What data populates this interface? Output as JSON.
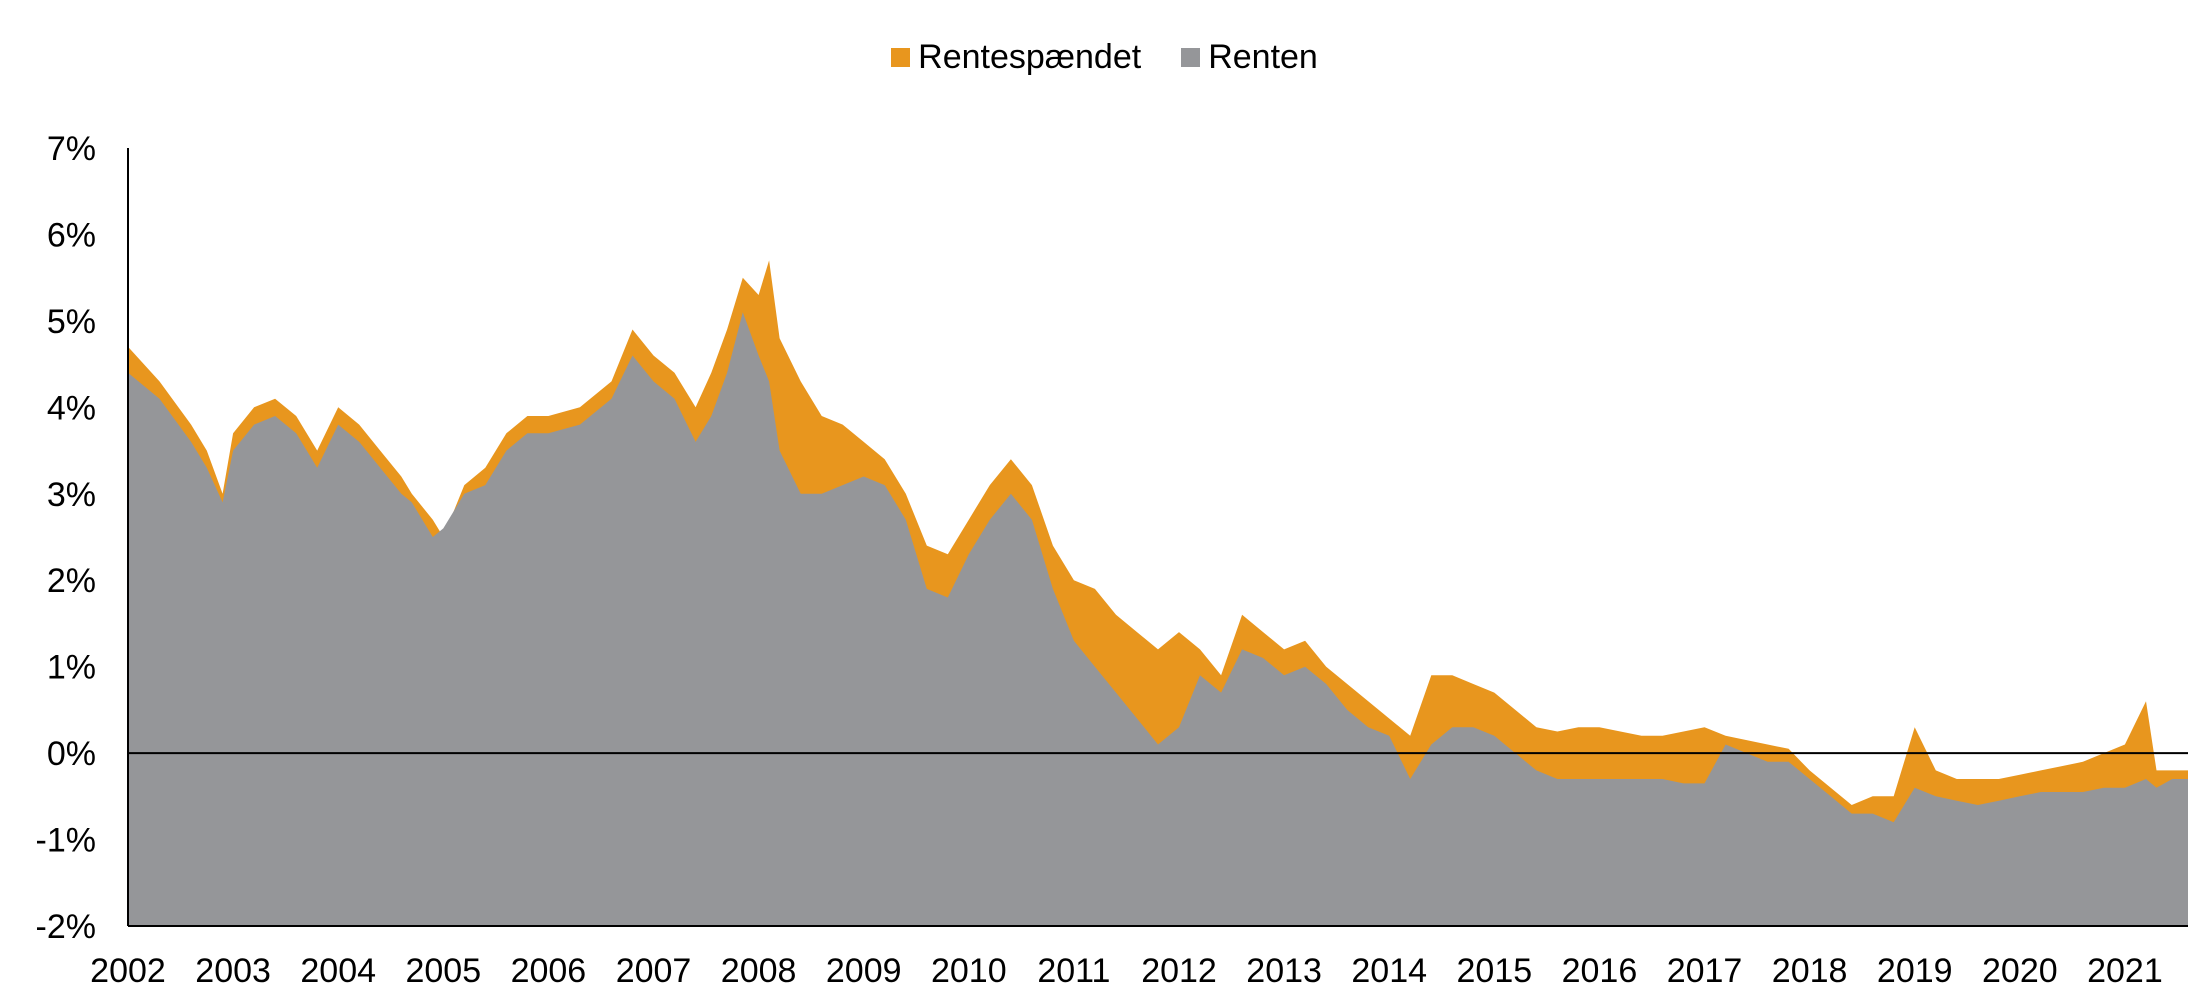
{
  "chart_data": {
    "type": "area",
    "title": "",
    "xlabel": "",
    "ylabel": "",
    "ylim": [
      -2,
      7
    ],
    "xlim": [
      2002.0,
      2021.6
    ],
    "y_ticks": [
      "7%",
      "6%",
      "5%",
      "4%",
      "3%",
      "2%",
      "1%",
      "0%",
      "-1%",
      "-2%"
    ],
    "x_ticks": [
      "2002",
      "2003",
      "2004",
      "2005",
      "2006",
      "2007",
      "2008",
      "2009",
      "2010",
      "2011",
      "2012",
      "2013",
      "2014",
      "2015",
      "2016",
      "2017",
      "2018",
      "2019",
      "2020",
      "2021"
    ],
    "legend_position": "top-center",
    "grid": false,
    "zero_line": true,
    "series": [
      {
        "name": "Rentespændet",
        "color": "#E8961E",
        "x": [
          2002.0,
          2002.3,
          2002.6,
          2002.75,
          2002.9,
          2003.0,
          2003.2,
          2003.4,
          2003.6,
          2003.8,
          2004.0,
          2004.2,
          2004.4,
          2004.6,
          2004.7,
          2004.9,
          2005.0,
          2005.2,
          2005.4,
          2005.6,
          2005.8,
          2006.0,
          2006.3,
          2006.6,
          2006.8,
          2007.0,
          2007.2,
          2007.4,
          2007.55,
          2007.7,
          2007.85,
          2008.0,
          2008.1,
          2008.2,
          2008.4,
          2008.6,
          2008.8,
          2009.0,
          2009.2,
          2009.4,
          2009.6,
          2009.8,
          2010.0,
          2010.2,
          2010.4,
          2010.6,
          2010.8,
          2011.0,
          2011.2,
          2011.4,
          2011.6,
          2011.8,
          2012.0,
          2012.2,
          2012.4,
          2012.6,
          2012.8,
          2013.0,
          2013.2,
          2013.4,
          2013.6,
          2013.8,
          2014.0,
          2014.2,
          2014.4,
          2014.6,
          2014.8,
          2015.0,
          2015.2,
          2015.4,
          2015.6,
          2015.8,
          2016.0,
          2016.2,
          2016.4,
          2016.6,
          2016.8,
          2017.0,
          2017.2,
          2017.4,
          2017.6,
          2017.8,
          2018.0,
          2018.2,
          2018.4,
          2018.6,
          2018.8,
          2019.0,
          2019.2,
          2019.4,
          2019.6,
          2019.8,
          2020.0,
          2020.2,
          2020.4,
          2020.6,
          2020.8,
          2021.0,
          2021.2,
          2021.3,
          2021.45,
          2021.55,
          2021.6
        ],
        "values": [
          4.7,
          4.3,
          3.8,
          3.5,
          3.0,
          3.7,
          4.0,
          4.1,
          3.9,
          3.5,
          4.0,
          3.8,
          3.5,
          3.2,
          3.0,
          2.7,
          2.5,
          3.1,
          3.3,
          3.7,
          3.9,
          3.9,
          4.0,
          4.3,
          4.9,
          4.6,
          4.4,
          4.0,
          4.4,
          4.9,
          5.5,
          5.3,
          5.7,
          4.8,
          4.3,
          3.9,
          3.8,
          3.6,
          3.4,
          3.0,
          2.4,
          2.3,
          2.7,
          3.1,
          3.4,
          3.1,
          2.4,
          2.0,
          1.9,
          1.6,
          1.4,
          1.2,
          1.4,
          1.2,
          0.9,
          1.6,
          1.4,
          1.2,
          1.3,
          1.0,
          0.8,
          0.6,
          0.4,
          0.2,
          0.9,
          0.9,
          0.8,
          0.7,
          0.5,
          0.3,
          0.25,
          0.3,
          0.3,
          0.25,
          0.2,
          0.2,
          0.25,
          0.3,
          0.2,
          0.15,
          0.1,
          0.05,
          -0.2,
          -0.4,
          -0.6,
          -0.5,
          -0.5,
          0.3,
          -0.2,
          -0.3,
          -0.3,
          -0.3,
          -0.25,
          -0.2,
          -0.15,
          -0.1,
          0.0,
          0.1,
          0.6,
          -0.2,
          -0.2,
          -0.2,
          -0.2
        ]
      },
      {
        "name": "Renten",
        "color": "#959699",
        "x": [
          2002.0,
          2002.3,
          2002.6,
          2002.75,
          2002.9,
          2003.0,
          2003.2,
          2003.4,
          2003.6,
          2003.8,
          2004.0,
          2004.2,
          2004.4,
          2004.6,
          2004.7,
          2004.9,
          2005.0,
          2005.2,
          2005.4,
          2005.6,
          2005.8,
          2006.0,
          2006.3,
          2006.6,
          2006.8,
          2007.0,
          2007.2,
          2007.4,
          2007.55,
          2007.7,
          2007.85,
          2008.0,
          2008.1,
          2008.2,
          2008.4,
          2008.6,
          2008.8,
          2009.0,
          2009.2,
          2009.4,
          2009.6,
          2009.8,
          2010.0,
          2010.2,
          2010.4,
          2010.6,
          2010.8,
          2011.0,
          2011.2,
          2011.4,
          2011.6,
          2011.8,
          2012.0,
          2012.2,
          2012.4,
          2012.6,
          2012.8,
          2013.0,
          2013.2,
          2013.4,
          2013.6,
          2013.8,
          2014.0,
          2014.2,
          2014.4,
          2014.6,
          2014.8,
          2015.0,
          2015.2,
          2015.4,
          2015.6,
          2015.8,
          2016.0,
          2016.2,
          2016.4,
          2016.6,
          2016.8,
          2017.0,
          2017.2,
          2017.4,
          2017.6,
          2017.8,
          2018.0,
          2018.2,
          2018.4,
          2018.6,
          2018.8,
          2019.0,
          2019.2,
          2019.4,
          2019.6,
          2019.8,
          2020.0,
          2020.2,
          2020.4,
          2020.6,
          2020.8,
          2021.0,
          2021.2,
          2021.3,
          2021.45,
          2021.55,
          2021.6
        ],
        "values": [
          4.4,
          4.1,
          3.6,
          3.3,
          2.9,
          3.5,
          3.8,
          3.9,
          3.7,
          3.3,
          3.8,
          3.6,
          3.3,
          3.0,
          2.9,
          2.5,
          2.6,
          3.0,
          3.1,
          3.5,
          3.7,
          3.7,
          3.8,
          4.1,
          4.6,
          4.3,
          4.1,
          3.6,
          3.9,
          4.4,
          5.1,
          4.6,
          4.3,
          3.5,
          3.0,
          3.0,
          3.1,
          3.2,
          3.1,
          2.7,
          1.9,
          1.8,
          2.3,
          2.7,
          3.0,
          2.7,
          1.9,
          1.3,
          1.0,
          0.7,
          0.4,
          0.1,
          0.3,
          0.9,
          0.7,
          1.2,
          1.1,
          0.9,
          1.0,
          0.8,
          0.5,
          0.3,
          0.2,
          -0.3,
          0.1,
          0.3,
          0.3,
          0.2,
          0.0,
          -0.2,
          -0.3,
          -0.3,
          -0.3,
          -0.3,
          -0.3,
          -0.3,
          -0.35,
          -0.35,
          0.1,
          0.0,
          -0.1,
          -0.1,
          -0.3,
          -0.5,
          -0.7,
          -0.7,
          -0.8,
          -0.4,
          -0.5,
          -0.55,
          -0.6,
          -0.55,
          -0.5,
          -0.45,
          -0.45,
          -0.45,
          -0.4,
          -0.4,
          -0.3,
          -0.4,
          -0.3,
          -0.3,
          -0.3
        ]
      }
    ]
  }
}
